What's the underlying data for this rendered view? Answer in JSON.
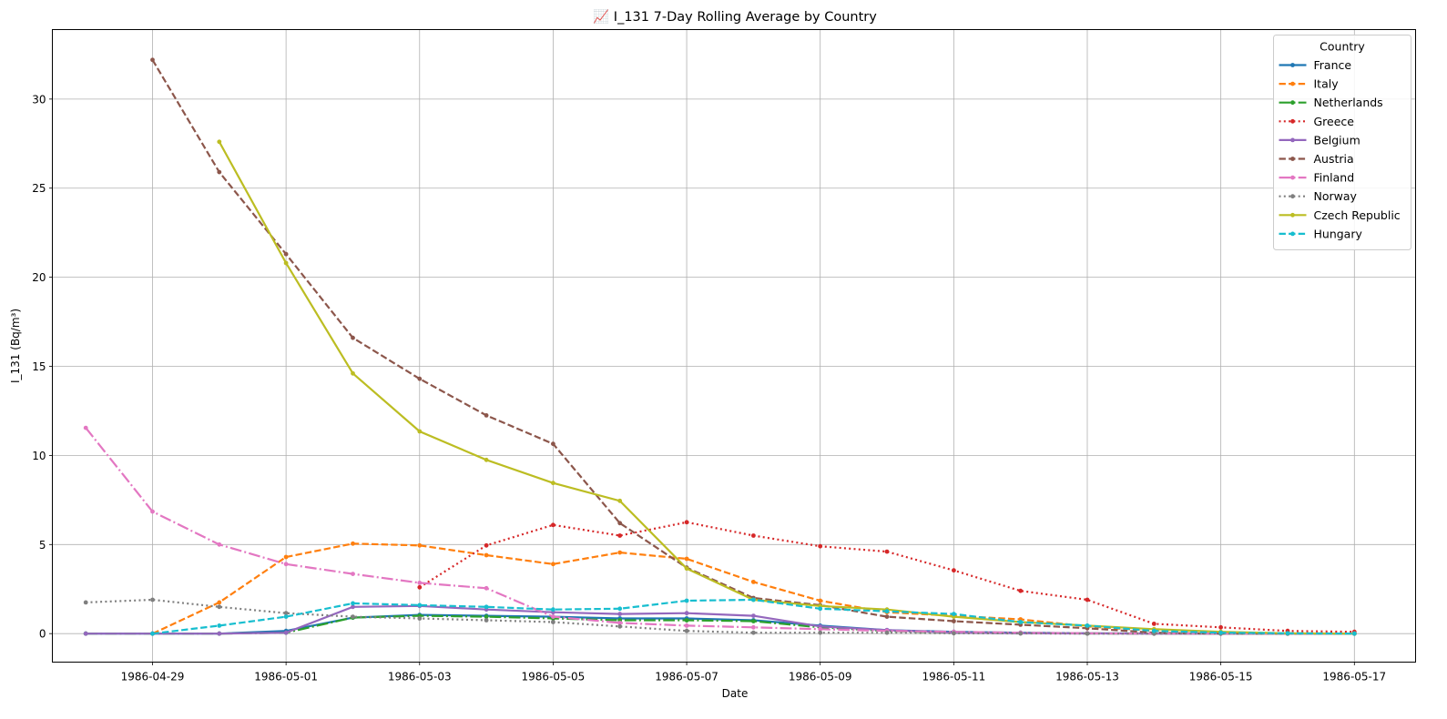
{
  "chart_data": {
    "type": "line",
    "title": "📈 I_131 7-Day Rolling Average by Country",
    "xlabel": "Date",
    "ylabel": "I_131 (Bq/m³)",
    "x": [
      "1986-04-28",
      "1986-04-29",
      "1986-04-30",
      "1986-05-01",
      "1986-05-02",
      "1986-05-03",
      "1986-05-04",
      "1986-05-05",
      "1986-05-06",
      "1986-05-07",
      "1986-05-08",
      "1986-05-09",
      "1986-05-10",
      "1986-05-11",
      "1986-05-12",
      "1986-05-13",
      "1986-05-14",
      "1986-05-15",
      "1986-05-16",
      "1986-05-17"
    ],
    "x_ticks": [
      "1986-04-29",
      "1986-05-01",
      "1986-05-03",
      "1986-05-05",
      "1986-05-07",
      "1986-05-09",
      "1986-05-11",
      "1986-05-13",
      "1986-05-15",
      "1986-05-17"
    ],
    "xlim": [
      "1986-04-27T12:00",
      "1986-05-17T22:00"
    ],
    "ylim": [
      -1.6,
      33.9
    ],
    "y_ticks": [
      0,
      5,
      10,
      15,
      20,
      25,
      30
    ],
    "grid": true,
    "legend_title": "Country",
    "legend_position": "top-right",
    "series": [
      {
        "name": "France",
        "color": "#1f77b4",
        "dash": "solid",
        "values": [
          0,
          0,
          0,
          0.15,
          0.9,
          1.05,
          1.0,
          0.95,
          0.85,
          0.85,
          0.75,
          0.45,
          0.2,
          0.1,
          0.05,
          0.02,
          0.01,
          0,
          0,
          0
        ]
      },
      {
        "name": "Italy",
        "color": "#ff7f0e",
        "dash": "dashed",
        "values": [
          null,
          0,
          1.75,
          4.3,
          5.05,
          4.95,
          4.4,
          3.9,
          4.55,
          4.2,
          2.9,
          1.85,
          1.2,
          1.0,
          0.8,
          0.4,
          0.15,
          0.05,
          0.02,
          0
        ]
      },
      {
        "name": "Netherlands",
        "color": "#2ca02c",
        "dash": "dashdot",
        "values": [
          0,
          0,
          0,
          0.05,
          0.9,
          1.0,
          0.95,
          0.85,
          0.75,
          0.75,
          0.7,
          0.35,
          0.15,
          0.05,
          0.02,
          0.01,
          0,
          0,
          0,
          0
        ]
      },
      {
        "name": "Greece",
        "color": "#d62728",
        "dash": "dotted",
        "values": [
          null,
          null,
          null,
          null,
          null,
          2.6,
          4.95,
          6.1,
          5.5,
          6.25,
          5.5,
          4.9,
          4.6,
          3.55,
          2.4,
          1.9,
          0.55,
          0.35,
          0.15,
          0.1
        ]
      },
      {
        "name": "Belgium",
        "color": "#9467bd",
        "dash": "solid",
        "values": [
          0,
          0,
          0,
          0.05,
          1.5,
          1.55,
          1.35,
          1.2,
          1.1,
          1.15,
          1.0,
          0.4,
          0.2,
          0.05,
          0.02,
          0.01,
          0,
          0,
          0,
          0
        ]
      },
      {
        "name": "Austria",
        "color": "#8c564b",
        "dash": "dashed",
        "values": [
          null,
          32.2,
          25.9,
          21.3,
          16.6,
          14.3,
          12.25,
          10.65,
          6.2,
          3.7,
          2.0,
          1.6,
          0.95,
          0.7,
          0.5,
          0.3,
          0.05,
          0,
          0,
          0
        ]
      },
      {
        "name": "Finland",
        "color": "#e377c2",
        "dash": "dashdot",
        "values": [
          11.55,
          6.85,
          5.0,
          3.9,
          3.35,
          2.85,
          2.55,
          0.95,
          0.6,
          0.45,
          0.35,
          0.25,
          0.15,
          0.1,
          0.05,
          0.02,
          0,
          0,
          0,
          0
        ]
      },
      {
        "name": "Norway",
        "color": "#7f7f7f",
        "dash": "dotted",
        "values": [
          1.75,
          1.9,
          1.5,
          1.15,
          0.95,
          0.85,
          0.75,
          0.65,
          0.4,
          0.15,
          0.05,
          0.05,
          0.05,
          0.02,
          0.01,
          0,
          0,
          0,
          0,
          0
        ]
      },
      {
        "name": "Czech Republic",
        "color": "#bcbd22",
        "dash": "solid",
        "values": [
          null,
          null,
          27.6,
          20.8,
          14.6,
          11.35,
          9.75,
          8.45,
          7.45,
          3.65,
          1.9,
          1.55,
          1.35,
          0.95,
          0.65,
          0.45,
          0.25,
          0.1,
          0.02,
          0
        ]
      },
      {
        "name": "Hungary",
        "color": "#17becf",
        "dash": "dashed",
        "values": [
          null,
          0,
          0.45,
          0.95,
          1.7,
          1.6,
          1.5,
          1.35,
          1.4,
          1.85,
          1.9,
          1.4,
          1.25,
          1.1,
          0.65,
          0.45,
          0.15,
          0.05,
          0.02,
          0
        ]
      }
    ]
  }
}
